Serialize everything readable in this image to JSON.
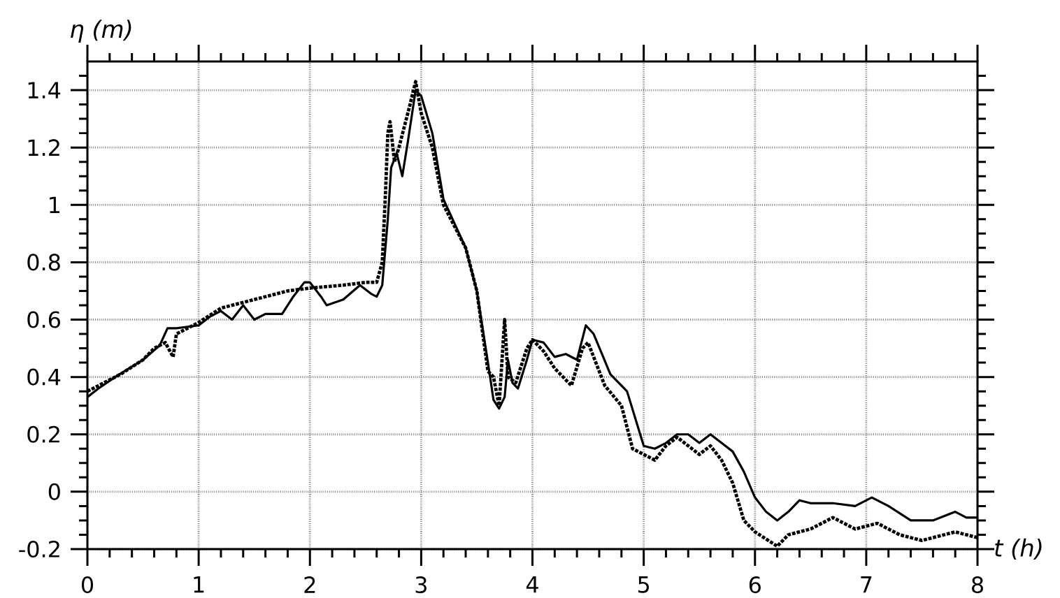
{
  "chart_data": {
    "type": "line",
    "xlabel": "t (h)",
    "ylabel": "η (m)",
    "xlim": [
      0,
      8
    ],
    "ylim": [
      -0.2,
      1.5
    ],
    "xticks": [
      0,
      {
        "value": 0.2,
        "label": null
      },
      {
        "value": 0.4,
        "label": null
      },
      {
        "value": 0.6,
        "label": null
      },
      {
        "value": 0.8,
        "label": null
      },
      1,
      {
        "value": 1.2,
        "label": null
      },
      {
        "value": 1.4,
        "label": null
      },
      {
        "value": 1.6,
        "label": null
      },
      {
        "value": 1.8,
        "label": null
      },
      2,
      {
        "value": 2.2,
        "label": null
      },
      {
        "value": 2.4,
        "label": null
      },
      {
        "value": 2.6,
        "label": null
      },
      {
        "value": 2.8,
        "label": null
      },
      3,
      {
        "value": 3.2,
        "label": null
      },
      {
        "value": 3.4,
        "label": null
      },
      {
        "value": 3.6,
        "label": null
      },
      {
        "value": 3.8,
        "label": null
      },
      4,
      {
        "value": 4.2,
        "label": null
      },
      {
        "value": 4.4,
        "label": null
      },
      {
        "value": 4.6,
        "label": null
      },
      {
        "value": 4.8,
        "label": null
      },
      5,
      {
        "value": 5.2,
        "label": null
      },
      {
        "value": 5.4,
        "label": null
      },
      {
        "value": 5.6,
        "label": null
      },
      {
        "value": 5.8,
        "label": null
      },
      6,
      {
        "value": 6.2,
        "label": null
      },
      {
        "value": 6.4,
        "label": null
      },
      {
        "value": 6.6,
        "label": null
      },
      {
        "value": 6.8,
        "label": null
      },
      7,
      {
        "value": 7.2,
        "label": null
      },
      {
        "value": 7.4,
        "label": null
      },
      {
        "value": 7.6,
        "label": null
      },
      {
        "value": 7.8,
        "label": null
      },
      8
    ],
    "yticks": [
      -0.2,
      {
        "value": -0.15,
        "label": null
      },
      {
        "value": -0.1,
        "label": null
      },
      {
        "value": -0.05,
        "label": null
      },
      0,
      {
        "value": 0.05,
        "label": null
      },
      {
        "value": 0.1,
        "label": null
      },
      {
        "value": 0.15,
        "label": null
      },
      0.2,
      {
        "value": 0.25,
        "label": null
      },
      {
        "value": 0.3,
        "label": null
      },
      {
        "value": 0.35,
        "label": null
      },
      0.4,
      {
        "value": 0.45,
        "label": null
      },
      {
        "value": 0.5,
        "label": null
      },
      {
        "value": 0.55,
        "label": null
      },
      0.6,
      {
        "value": 0.65,
        "label": null
      },
      {
        "value": 0.7,
        "label": null
      },
      {
        "value": 0.75,
        "label": null
      },
      0.8,
      {
        "value": 0.85,
        "label": null
      },
      {
        "value": 0.9,
        "label": null
      },
      {
        "value": 0.95,
        "label": null
      },
      1,
      {
        "value": 1.05,
        "label": null
      },
      {
        "value": 1.1,
        "label": null
      },
      {
        "value": 1.15,
        "label": null
      },
      1.2,
      {
        "value": 1.25,
        "label": null
      },
      {
        "value": 1.3,
        "label": null
      },
      {
        "value": 1.35,
        "label": null
      },
      1.4,
      {
        "value": 1.45,
        "label": null
      }
    ],
    "grid": true,
    "marker": "none",
    "series": [
      {
        "color": "#000000",
        "line_style": "solid",
        "x": [
          0,
          0.1,
          0.25,
          0.5,
          0.65,
          0.72,
          0.8,
          1.0,
          1.1,
          1.2,
          1.3,
          1.4,
          1.5,
          1.6,
          1.75,
          1.85,
          1.95,
          2.0,
          2.1,
          2.15,
          2.3,
          2.45,
          2.55,
          2.6,
          2.65,
          2.7,
          2.73,
          2.78,
          2.83,
          2.88,
          2.95,
          3.0,
          3.1,
          3.2,
          3.4,
          3.5,
          3.6,
          3.65,
          3.7,
          3.75,
          3.78,
          3.82,
          3.87,
          3.95,
          4.0,
          4.1,
          4.2,
          4.3,
          4.4,
          4.48,
          4.55,
          4.7,
          4.85,
          5.0,
          5.1,
          5.2,
          5.3,
          5.4,
          5.5,
          5.6,
          5.7,
          5.8,
          5.9,
          6.0,
          6.1,
          6.2,
          6.3,
          6.4,
          6.5,
          6.7,
          6.9,
          7.05,
          7.2,
          7.4,
          7.6,
          7.8,
          7.9,
          8.0
        ],
        "values": [
          0.33,
          0.36,
          0.4,
          0.46,
          0.51,
          0.57,
          0.57,
          0.58,
          0.61,
          0.63,
          0.6,
          0.65,
          0.6,
          0.62,
          0.62,
          0.68,
          0.73,
          0.73,
          0.68,
          0.65,
          0.67,
          0.72,
          0.69,
          0.68,
          0.72,
          0.95,
          1.13,
          1.18,
          1.1,
          1.22,
          1.4,
          1.38,
          1.25,
          1.02,
          0.85,
          0.7,
          0.45,
          0.32,
          0.29,
          0.33,
          0.46,
          0.38,
          0.36,
          0.46,
          0.53,
          0.52,
          0.47,
          0.48,
          0.46,
          0.58,
          0.55,
          0.41,
          0.35,
          0.16,
          0.15,
          0.17,
          0.2,
          0.2,
          0.17,
          0.2,
          0.17,
          0.14,
          0.07,
          -0.02,
          -0.07,
          -0.1,
          -0.07,
          -0.03,
          -0.04,
          -0.04,
          -0.05,
          -0.02,
          -0.05,
          -0.1,
          -0.1,
          -0.07,
          -0.09,
          -0.09
        ]
      },
      {
        "color": "#000000",
        "line_style": "dotted",
        "x": [
          0,
          0.3,
          0.5,
          0.6,
          0.7,
          0.77,
          0.8,
          1.0,
          1.2,
          1.5,
          1.8,
          2.0,
          2.3,
          2.5,
          2.6,
          2.65,
          2.68,
          2.7,
          2.72,
          2.76,
          2.8,
          2.9,
          2.95,
          3.0,
          3.1,
          3.2,
          3.4,
          3.5,
          3.6,
          3.65,
          3.7,
          3.75,
          3.78,
          3.85,
          3.95,
          4.0,
          4.1,
          4.2,
          4.35,
          4.45,
          4.5,
          4.65,
          4.8,
          4.9,
          5.0,
          5.1,
          5.2,
          5.3,
          5.4,
          5.5,
          5.6,
          5.7,
          5.8,
          5.9,
          6.0,
          6.2,
          6.3,
          6.5,
          6.7,
          6.9,
          7.0,
          7.1,
          7.3,
          7.5,
          7.7,
          7.8,
          8.0
        ],
        "values": [
          0.35,
          0.41,
          0.46,
          0.5,
          0.52,
          0.47,
          0.55,
          0.59,
          0.64,
          0.67,
          0.7,
          0.71,
          0.72,
          0.73,
          0.73,
          0.8,
          1.05,
          1.25,
          1.29,
          1.15,
          1.2,
          1.35,
          1.43,
          1.32,
          1.2,
          1.0,
          0.85,
          0.7,
          0.42,
          0.4,
          0.3,
          0.6,
          0.4,
          0.38,
          0.5,
          0.53,
          0.49,
          0.43,
          0.37,
          0.5,
          0.52,
          0.37,
          0.3,
          0.15,
          0.13,
          0.11,
          0.16,
          0.19,
          0.16,
          0.13,
          0.16,
          0.11,
          0.03,
          -0.1,
          -0.14,
          -0.19,
          -0.15,
          -0.13,
          -0.09,
          -0.13,
          -0.12,
          -0.11,
          -0.15,
          -0.17,
          -0.15,
          -0.14,
          -0.16
        ]
      }
    ]
  }
}
